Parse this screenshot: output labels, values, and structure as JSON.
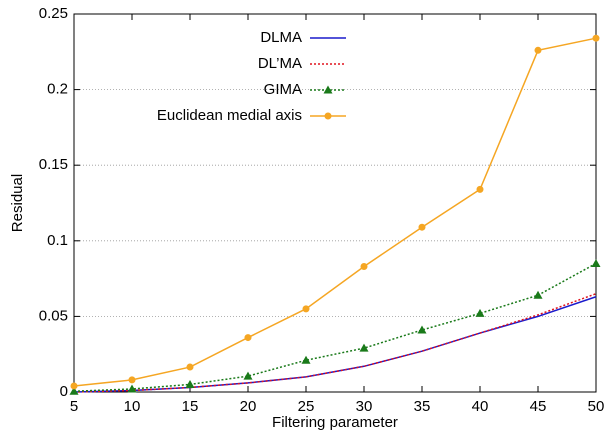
{
  "chart_data": {
    "type": "line",
    "x_label": "Filtering parameter",
    "y_label": "Residual",
    "x": [
      5,
      10,
      15,
      20,
      25,
      30,
      35,
      40,
      45,
      50
    ],
    "xlim": [
      5,
      50
    ],
    "xticks": [
      5,
      10,
      15,
      20,
      25,
      30,
      35,
      40,
      45,
      50
    ],
    "ylim": [
      0,
      0.25
    ],
    "yticks": [
      0,
      0.05,
      0.1,
      0.15,
      0.2,
      0.25
    ],
    "grid": "y",
    "legend": "top",
    "series": [
      {
        "name": "DLMA",
        "color": "#1a1acc",
        "dash": "solid",
        "marker": "none",
        "values": [
          0,
          0.001,
          0.003,
          0.006,
          0.01,
          0.017,
          0.027,
          0.039,
          0.05,
          0.063
        ]
      },
      {
        "name": "DL’MA",
        "color": "#e0141e",
        "dash": "dotted",
        "marker": "none",
        "values": [
          0,
          0.001,
          0.003,
          0.006,
          0.01,
          0.017,
          0.027,
          0.039,
          0.051,
          0.065
        ]
      },
      {
        "name": "GIMA",
        "color": "#1a7a1a",
        "dash": "dotted",
        "marker": "triangle",
        "values": [
          0.0005,
          0.002,
          0.005,
          0.0105,
          0.021,
          0.029,
          0.041,
          0.052,
          0.064,
          0.085
        ]
      },
      {
        "name": "Euclidean medial axis",
        "color": "#f5a623",
        "dash": "solid",
        "marker": "circle",
        "values": [
          0.004,
          0.008,
          0.0165,
          0.036,
          0.055,
          0.083,
          0.109,
          0.134,
          0.226,
          0.234
        ]
      }
    ]
  }
}
